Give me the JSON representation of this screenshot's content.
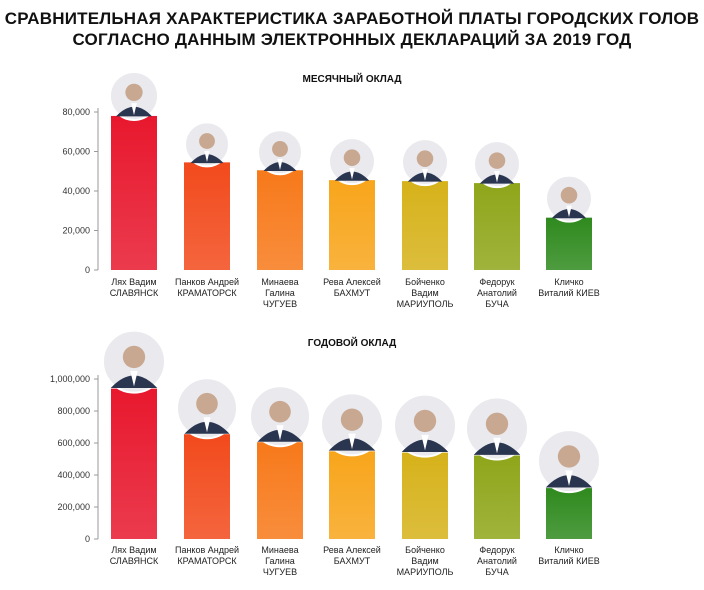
{
  "title_line1": "СРАВНИТЕЛЬНАЯ ХАРАКТЕРИСТИКА ЗАРАБОТНОЙ ПЛАТЫ ГОРОДСКИХ ГОЛОВ",
  "title_line2": "СОГЛАСНО ДАННЫМ ЭЛЕКТРОННЫХ ДЕКЛАРАЦИЙ ЗА 2019 ГОД",
  "chart_data": [
    {
      "type": "bar",
      "title": "МЕСЯЧНЫЙ ОКЛАД",
      "categories": [
        [
          "Лях Вадим",
          "СЛАВЯНСК"
        ],
        [
          "Панков Андрей",
          "КРАМАТОРСК"
        ],
        [
          "Минаева",
          "Галина",
          "ЧУГУЕВ"
        ],
        [
          "Рева Алексей",
          "БАХМУТ"
        ],
        [
          "Бойченко",
          "Вадим",
          "МАРИУПОЛЬ"
        ],
        [
          "Федорук",
          "Анатолий",
          "БУЧА"
        ],
        [
          "Кличко",
          "Виталий КИЕВ"
        ]
      ],
      "values": [
        78000,
        54500,
        50500,
        45500,
        45000,
        44000,
        26500
      ],
      "ylim": [
        0,
        80000
      ],
      "yticks": [
        0,
        20000,
        40000,
        60000,
        80000
      ],
      "ytick_labels": [
        "0",
        "20,000",
        "40,000",
        "60,000",
        "80,000"
      ],
      "grid": false,
      "bar_colors": [
        "#e8182e",
        "#f24a1c",
        "#f7791a",
        "#f8a51b",
        "#d6b21a",
        "#8fa61a",
        "#2f8a1e"
      ],
      "photo_icon": "portrait-photo-icon"
    },
    {
      "type": "bar",
      "title": "ГОДОВОЙ ОКЛАД",
      "categories": [
        [
          "Лях Вадим",
          "СЛАВЯНСК"
        ],
        [
          "Панков Андрей",
          "КРАМАТОРСК"
        ],
        [
          "Минаева",
          "Галина",
          "ЧУГУЕВ"
        ],
        [
          "Рева Алексей",
          "БАХМУТ"
        ],
        [
          "Бойченко",
          "Вадим",
          "МАРИУПОЛЬ"
        ],
        [
          "Федорук",
          "Анатолий",
          "БУЧА"
        ],
        [
          "Кличко",
          "Виталий КИЕВ"
        ]
      ],
      "values": [
        940000,
        655000,
        605000,
        548000,
        540000,
        522000,
        318000
      ],
      "ylim": [
        0,
        1000000
      ],
      "yticks": [
        0,
        200000,
        400000,
        600000,
        800000,
        1000000
      ],
      "ytick_labels": [
        "0",
        "200,000",
        "400,000",
        "600,000",
        "800,000",
        "1,000,000"
      ],
      "grid": false,
      "bar_colors": [
        "#e8182e",
        "#f24a1c",
        "#f7791a",
        "#f8a51b",
        "#d6b21a",
        "#8fa61a",
        "#2f8a1e"
      ],
      "photo_icon": "portrait-photo-icon"
    }
  ]
}
